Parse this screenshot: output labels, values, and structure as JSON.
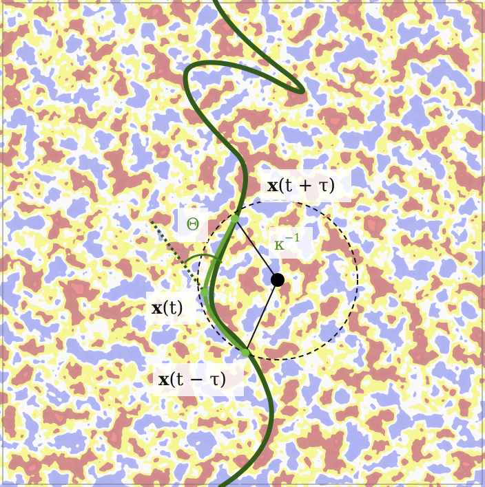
{
  "labels": {
    "future": {
      "symbol": "x",
      "argument": "(t + τ)"
    },
    "angle": "Θ",
    "curvature": {
      "symbol": "κ",
      "exponent": "−1"
    },
    "present": {
      "symbol": "x",
      "argument": "(t)"
    },
    "past": {
      "symbol": "x",
      "argument": "(t − τ)"
    }
  }
}
